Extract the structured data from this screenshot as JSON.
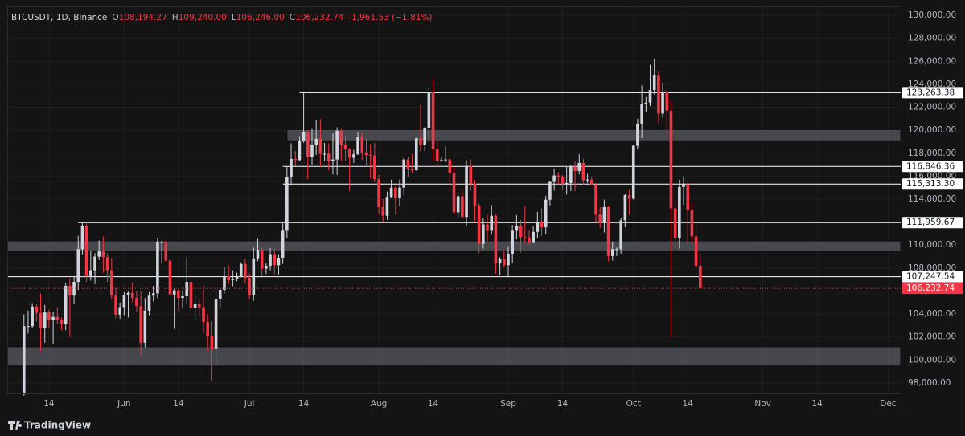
{
  "header": {
    "symbol": "BTCUSDT, 1D, Binance",
    "fields": [
      {
        "key": "O",
        "value": "108,194.27"
      },
      {
        "key": "H",
        "value": "109,240.00"
      },
      {
        "key": "L",
        "value": "106,246.00"
      },
      {
        "key": "C",
        "value": "106,232.74"
      }
    ],
    "change": "-1,961.53 (−1.81%)"
  },
  "footer": {
    "brand": "TradingView"
  },
  "chart_data": {
    "type": "candlestick",
    "up_color": "#d1d4dc",
    "down_color": "#f23645",
    "grid": true,
    "xlim": [
      "May 4",
      "Dec 4"
    ],
    "xticks": [
      {
        "value": "May 14",
        "label": "14"
      },
      {
        "value": "Jun 1",
        "label": "Jun"
      },
      {
        "value": "Jun 14",
        "label": "14"
      },
      {
        "value": "Jul 1",
        "label": "Jul"
      },
      {
        "value": "Jul 14",
        "label": "14"
      },
      {
        "value": "Aug 1",
        "label": "Aug"
      },
      {
        "value": "Aug 14",
        "label": "14"
      },
      {
        "value": "Sep 1",
        "label": "Sep"
      },
      {
        "value": "Sep 14",
        "label": "14"
      },
      {
        "value": "Oct 1",
        "label": "Oct"
      },
      {
        "value": "Oct 14",
        "label": "14"
      },
      {
        "value": "Nov 1",
        "label": "Nov"
      },
      {
        "value": "Nov 14",
        "label": "14"
      },
      {
        "value": "Dec 1",
        "label": "Dec"
      }
    ],
    "ylim": [
      97090,
      130770
    ],
    "yticks": [
      {
        "value": 98000,
        "label": "98,000.00"
      },
      {
        "value": 100000,
        "label": "100,000.00"
      },
      {
        "value": 102000,
        "label": "102,000.00"
      },
      {
        "value": 104000,
        "label": "104,000.00"
      },
      {
        "value": 106000,
        "label": "106,000.00"
      },
      {
        "value": 108000,
        "label": "108,000.00"
      },
      {
        "value": 110000,
        "label": "110,000.00"
      },
      {
        "value": 112000,
        "label": "112,000.00"
      },
      {
        "value": 114000,
        "label": "114,000.00"
      },
      {
        "value": 116000,
        "label": "116,000.00"
      },
      {
        "value": 118000,
        "label": "118,000.00"
      },
      {
        "value": 120000,
        "label": "120,000.00"
      },
      {
        "value": 122000,
        "label": "122,000.00"
      },
      {
        "value": 124000,
        "label": "124,000.00"
      },
      {
        "value": 126000,
        "label": "126,000.00"
      },
      {
        "value": 128000,
        "label": "128,000.00"
      },
      {
        "value": 130000,
        "label": "130,000.00"
      }
    ],
    "zones": [
      {
        "low": 119080,
        "high": 120060,
        "start": "Jul 10"
      },
      {
        "low": 109460,
        "high": 110370
      },
      {
        "low": 99480,
        "high": 101150
      }
    ],
    "hlines": [
      {
        "value": 123263.38,
        "label": "123,263.38",
        "start": "Jul 13"
      },
      {
        "value": 116846.36,
        "label": "116,846.36",
        "start": "Jul 9"
      },
      {
        "value": 115313.3,
        "label": "115,313.30",
        "start": "Jul 9"
      },
      {
        "value": 111959.67,
        "label": "111,959.67",
        "start": "May 21"
      },
      {
        "value": 107247.54,
        "label": "107,247.54"
      }
    ],
    "price_label": "106,232.74",
    "x": [
      "May 8",
      "May 9",
      "May 10",
      "May 11",
      "May 12",
      "May 13",
      "May 14",
      "May 15",
      "May 16",
      "May 17",
      "May 18",
      "May 19",
      "May 20",
      "May 21",
      "May 22",
      "May 23",
      "May 24",
      "May 25",
      "May 26",
      "May 27",
      "May 28",
      "May 29",
      "May 30",
      "May 31",
      "Jun 1",
      "Jun 2",
      "Jun 3",
      "Jun 4",
      "Jun 5",
      "Jun 6",
      "Jun 7",
      "Jun 8",
      "Jun 9",
      "Jun 10",
      "Jun 11",
      "Jun 12",
      "Jun 13",
      "Jun 14",
      "Jun 15",
      "Jun 16",
      "Jun 17",
      "Jun 18",
      "Jun 19",
      "Jun 20",
      "Jun 21",
      "Jun 22",
      "Jun 23",
      "Jun 24",
      "Jun 25",
      "Jun 26",
      "Jun 27",
      "Jun 28",
      "Jun 29",
      "Jun 30",
      "Jul 1",
      "Jul 2",
      "Jul 3",
      "Jul 4",
      "Jul 5",
      "Jul 6",
      "Jul 7",
      "Jul 8",
      "Jul 9",
      "Jul 10",
      "Jul 11",
      "Jul 12",
      "Jul 13",
      "Jul 14",
      "Jul 15",
      "Jul 16",
      "Jul 17",
      "Jul 18",
      "Jul 19",
      "Jul 20",
      "Jul 21",
      "Jul 22",
      "Jul 23",
      "Jul 24",
      "Jul 25",
      "Jul 26",
      "Jul 27",
      "Jul 28",
      "Jul 29",
      "Jul 30",
      "Jul 31",
      "Aug 1",
      "Aug 2",
      "Aug 3",
      "Aug 4",
      "Aug 5",
      "Aug 6",
      "Aug 7",
      "Aug 8",
      "Aug 9",
      "Aug 10",
      "Aug 11",
      "Aug 12",
      "Aug 13",
      "Aug 14",
      "Aug 15",
      "Aug 16",
      "Aug 17",
      "Aug 18",
      "Aug 19",
      "Aug 20",
      "Aug 21",
      "Aug 22",
      "Aug 23",
      "Aug 24",
      "Aug 25",
      "Aug 26",
      "Aug 27",
      "Aug 28",
      "Aug 29",
      "Aug 30",
      "Aug 31",
      "Sep 1",
      "Sep 2",
      "Sep 3",
      "Sep 4",
      "Sep 5",
      "Sep 6",
      "Sep 7",
      "Sep 8",
      "Sep 9",
      "Sep 10",
      "Sep 11",
      "Sep 12",
      "Sep 13",
      "Sep 14",
      "Sep 15",
      "Sep 16",
      "Sep 17",
      "Sep 18",
      "Sep 19",
      "Sep 20",
      "Sep 21",
      "Sep 22",
      "Sep 23",
      "Sep 24",
      "Sep 25",
      "Sep 26",
      "Sep 27",
      "Sep 28",
      "Sep 29",
      "Sep 30",
      "Oct 1",
      "Oct 2",
      "Oct 3",
      "Oct 4",
      "Oct 5",
      "Oct 6",
      "Oct 7",
      "Oct 8",
      "Oct 9",
      "Oct 10",
      "Oct 11",
      "Oct 12",
      "Oct 13",
      "Oct 14",
      "Oct 15",
      "Oct 16",
      "Oct 17"
    ],
    "ohlc": [
      [
        97000,
        103970,
        96900,
        102950
      ],
      [
        102950,
        104300,
        102300,
        102950
      ],
      [
        102950,
        104950,
        102800,
        104650
      ],
      [
        104650,
        104900,
        103350,
        104100
      ],
      [
        104100,
        105800,
        100800,
        102800
      ],
      [
        102800,
        104800,
        101500,
        104150
      ],
      [
        104150,
        104400,
        102800,
        103500
      ],
      [
        103500,
        104200,
        101400,
        103750
      ],
      [
        103750,
        104600,
        103100,
        103500
      ],
      [
        103500,
        103700,
        102600,
        103150
      ],
      [
        103150,
        106700,
        102600,
        106450
      ],
      [
        106450,
        107100,
        102000,
        105600
      ],
      [
        105600,
        107300,
        104900,
        106800
      ],
      [
        106800,
        110800,
        106100,
        109650
      ],
      [
        109650,
        111980,
        109200,
        111700
      ],
      [
        111700,
        111950,
        106800,
        107300
      ],
      [
        107300,
        109500,
        106900,
        107800
      ],
      [
        107800,
        109300,
        106600,
        109000
      ],
      [
        109000,
        110400,
        108700,
        109450
      ],
      [
        109450,
        110750,
        107600,
        108950
      ],
      [
        108950,
        109300,
        106800,
        107800
      ],
      [
        107800,
        108900,
        105300,
        105600
      ],
      [
        105600,
        106300,
        103650,
        103950
      ],
      [
        103950,
        105000,
        103600,
        104600
      ],
      [
        104600,
        105900,
        103900,
        105650
      ],
      [
        105650,
        105950,
        103700,
        105850
      ],
      [
        105850,
        106800,
        105000,
        105400
      ],
      [
        105400,
        106000,
        104200,
        104700
      ],
      [
        104700,
        105950,
        100400,
        101500
      ],
      [
        101500,
        105400,
        101100,
        104300
      ],
      [
        104300,
        105900,
        103900,
        105600
      ],
      [
        105600,
        106450,
        105100,
        105800
      ],
      [
        105800,
        110600,
        105400,
        110250
      ],
      [
        110250,
        110400,
        108400,
        110250
      ],
      [
        110250,
        110400,
        108500,
        108650
      ],
      [
        108650,
        108950,
        105700,
        105700
      ],
      [
        105700,
        106200,
        102700,
        106050
      ],
      [
        106050,
        106200,
        104300,
        105400
      ],
      [
        105400,
        106100,
        104500,
        105550
      ],
      [
        105550,
        108950,
        104900,
        106800
      ],
      [
        106800,
        107750,
        103400,
        104550
      ],
      [
        104550,
        105550,
        103500,
        104850
      ],
      [
        104850,
        105250,
        103900,
        104600
      ],
      [
        104600,
        106500,
        102300,
        103300
      ],
      [
        103300,
        104000,
        100800,
        102100
      ],
      [
        102100,
        103400,
        98200,
        100950
      ],
      [
        100950,
        106100,
        99600,
        105300
      ],
      [
        105300,
        106300,
        104600,
        106100
      ],
      [
        106100,
        108100,
        105800,
        107300
      ],
      [
        107300,
        108250,
        106600,
        106950
      ],
      [
        106950,
        107800,
        106400,
        107050
      ],
      [
        107050,
        107600,
        106850,
        107300
      ],
      [
        107300,
        108500,
        107200,
        108350
      ],
      [
        108350,
        108800,
        106700,
        107150
      ],
      [
        107150,
        107550,
        105300,
        105650
      ],
      [
        105650,
        109800,
        105150,
        108850
      ],
      [
        108850,
        110550,
        108600,
        109600
      ],
      [
        109600,
        109750,
        107300,
        107950
      ],
      [
        107950,
        108400,
        107500,
        108200
      ],
      [
        108200,
        109750,
        107800,
        109200
      ],
      [
        109200,
        109700,
        107500,
        108250
      ],
      [
        108250,
        109200,
        107450,
        108900
      ],
      [
        108900,
        111950,
        108350,
        111250
      ],
      [
        111250,
        116800,
        110600,
        115950
      ],
      [
        115950,
        118850,
        115250,
        117500
      ],
      [
        117500,
        118200,
        116900,
        117400
      ],
      [
        117400,
        119500,
        117300,
        119100
      ],
      [
        119100,
        123250,
        118900,
        119850
      ],
      [
        119850,
        119950,
        115750,
        117700
      ],
      [
        117700,
        120100,
        117000,
        118750
      ],
      [
        118750,
        120850,
        117850,
        119250
      ],
      [
        119250,
        120950,
        116800,
        117950
      ],
      [
        117950,
        118900,
        117300,
        117950
      ],
      [
        117950,
        118850,
        116500,
        117300
      ],
      [
        117300,
        119700,
        116150,
        117450
      ],
      [
        117450,
        120250,
        116100,
        119950
      ],
      [
        119950,
        120100,
        117300,
        118750
      ],
      [
        118750,
        119550,
        117300,
        118350
      ],
      [
        118350,
        118450,
        114700,
        117600
      ],
      [
        117600,
        118300,
        117150,
        117900
      ],
      [
        117900,
        119800,
        117850,
        119450
      ],
      [
        119450,
        119800,
        117400,
        118050
      ],
      [
        118050,
        119250,
        116850,
        117850
      ],
      [
        117850,
        118800,
        115800,
        117800
      ],
      [
        117800,
        118900,
        115500,
        115750
      ],
      [
        115750,
        116100,
        112700,
        113300
      ],
      [
        113300,
        114000,
        112000,
        112550
      ],
      [
        112550,
        114650,
        112200,
        114200
      ],
      [
        114200,
        115700,
        114100,
        115000
      ],
      [
        115000,
        115100,
        112650,
        114100
      ],
      [
        114100,
        115700,
        113400,
        115000
      ],
      [
        115000,
        117650,
        114300,
        117450
      ],
      [
        117450,
        117700,
        115900,
        116650
      ],
      [
        116650,
        117900,
        116300,
        116500
      ],
      [
        116500,
        119350,
        116500,
        119300
      ],
      [
        119300,
        122300,
        118150,
        118700
      ],
      [
        118700,
        120300,
        118200,
        120150
      ],
      [
        120150,
        123700,
        118950,
        123300
      ],
      [
        123300,
        124450,
        117200,
        118350
      ],
      [
        118350,
        119200,
        116800,
        117350
      ],
      [
        117350,
        117650,
        117250,
        117400
      ],
      [
        117400,
        118600,
        117200,
        117450
      ],
      [
        117450,
        117550,
        114650,
        116250
      ],
      [
        116250,
        116800,
        112700,
        112850
      ],
      [
        112850,
        114600,
        112400,
        114250
      ],
      [
        114250,
        114800,
        112400,
        112450
      ],
      [
        112450,
        117400,
        111700,
        116900
      ],
      [
        116900,
        117450,
        114700,
        115350
      ],
      [
        115350,
        115650,
        112050,
        113450
      ],
      [
        113450,
        113650,
        109300,
        110100
      ],
      [
        110100,
        112350,
        109700,
        111800
      ],
      [
        111800,
        112650,
        110350,
        111250
      ],
      [
        111250,
        113500,
        110900,
        112550
      ],
      [
        112550,
        112650,
        107500,
        108400
      ],
      [
        108400,
        108950,
        107350,
        108800
      ],
      [
        108800,
        109500,
        108050,
        108250
      ],
      [
        108250,
        109900,
        107250,
        109250
      ],
      [
        109250,
        111750,
        108400,
        111250
      ],
      [
        111250,
        112600,
        110500,
        111700
      ],
      [
        111700,
        112200,
        109350,
        110700
      ],
      [
        110700,
        113400,
        110200,
        110650
      ],
      [
        110650,
        111300,
        110050,
        110200
      ],
      [
        110200,
        111650,
        110150,
        111150
      ],
      [
        111150,
        112900,
        110600,
        112050
      ],
      [
        112050,
        113200,
        110800,
        111550
      ],
      [
        111550,
        114300,
        110950,
        113950
      ],
      [
        113950,
        115550,
        113450,
        115500
      ],
      [
        115500,
        116650,
        114750,
        116050
      ],
      [
        116050,
        116350,
        115250,
        115950
      ],
      [
        115950,
        116100,
        114750,
        115350
      ],
      [
        115350,
        116800,
        114400,
        115400
      ],
      [
        115400,
        117000,
        114700,
        116800
      ],
      [
        116800,
        117300,
        114700,
        116450
      ],
      [
        116450,
        117900,
        116150,
        117150
      ],
      [
        117150,
        117500,
        115200,
        115650
      ],
      [
        115650,
        116200,
        115400,
        115700
      ],
      [
        115700,
        115950,
        115200,
        115250
      ],
      [
        115250,
        115400,
        112000,
        112650
      ],
      [
        112650,
        113300,
        111500,
        111950
      ],
      [
        111950,
        113950,
        111100,
        113300
      ],
      [
        113300,
        113450,
        108600,
        109050
      ],
      [
        109050,
        110300,
        108650,
        109650
      ],
      [
        109650,
        109800,
        109050,
        109650
      ],
      [
        109650,
        112400,
        109250,
        112150
      ],
      [
        112150,
        114500,
        111550,
        114350
      ],
      [
        114350,
        114800,
        112650,
        114050
      ],
      [
        114050,
        118700,
        113950,
        118650
      ],
      [
        118650,
        121000,
        118350,
        120550
      ],
      [
        120550,
        123900,
        119300,
        122250
      ],
      [
        122250,
        122900,
        121600,
        122400
      ],
      [
        122400,
        125700,
        122100,
        123500
      ],
      [
        123500,
        126200,
        123100,
        124750
      ],
      [
        124750,
        125150,
        120600,
        121450
      ],
      [
        121450,
        124150,
        121100,
        123300
      ],
      [
        123300,
        123700,
        119650,
        121700
      ],
      [
        121700,
        122550,
        102000,
        113200
      ],
      [
        113200,
        113950,
        109700,
        110650
      ],
      [
        110650,
        115700,
        109700,
        115050
      ],
      [
        115050,
        115950,
        113500,
        115300
      ],
      [
        115300,
        115500,
        110050,
        113050
      ],
      [
        113050,
        113600,
        110200,
        110750
      ],
      [
        110750,
        111950,
        107450,
        108194.27
      ],
      [
        108194.27,
        109240,
        106246,
        106232.74
      ]
    ]
  }
}
